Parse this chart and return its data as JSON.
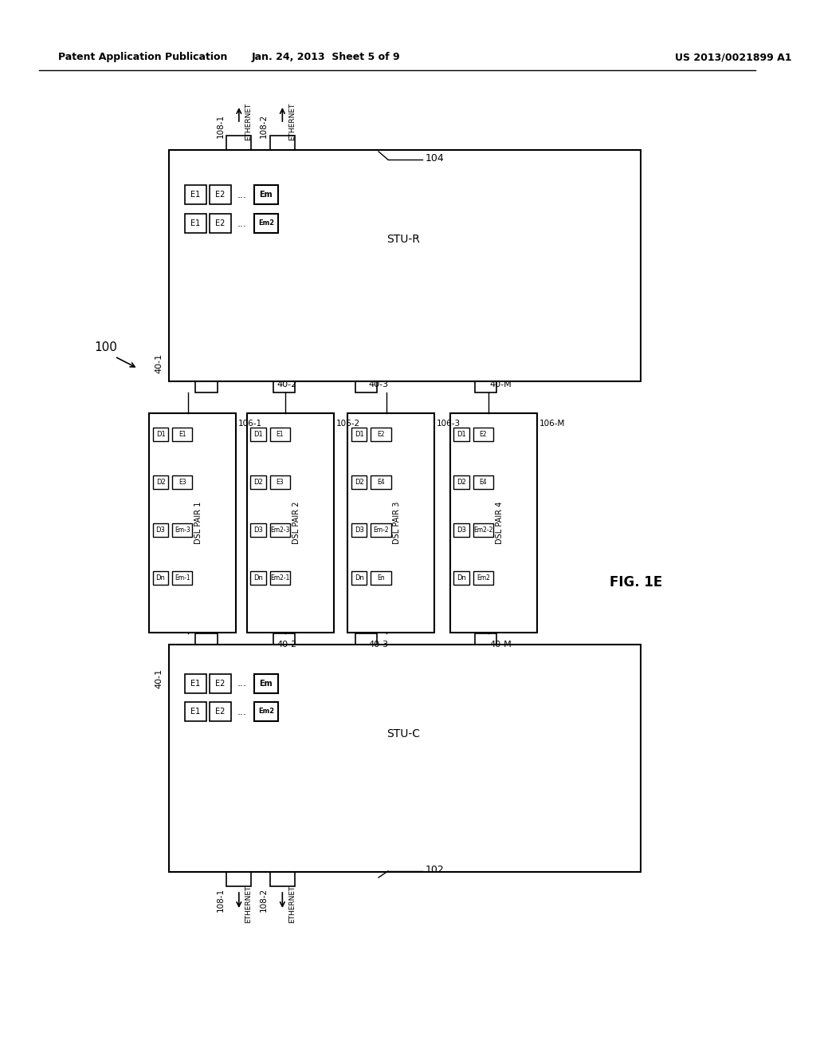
{
  "bg_color": "#ffffff",
  "header_left": "Patent Application Publication",
  "header_mid": "Jan. 24, 2013  Sheet 5 of 9",
  "header_right": "US 2013/0021899 A1",
  "fig_label": "FIG. 1E",
  "system_label": "100",
  "stu_r_label": "STU-R",
  "stu_c_label": "STU-C",
  "ref_104": "104",
  "ref_102": "102",
  "ref_40_1_top": "40-1",
  "ref_40_2_top": "40-2",
  "ref_40_3_top": "40-3",
  "ref_40_M_top": "40-M",
  "ref_40_1_bot": "40-1",
  "ref_40_2_bot": "40-2",
  "ref_40_3_bot": "40-3",
  "ref_40_M_bot": "40-M",
  "eth_labels_top": [
    "108-1",
    "108-2"
  ],
  "eth_labels_bot": [
    "108-1",
    "108-2"
  ],
  "eth_text": "ETHERNET",
  "dsl_pairs": [
    "DSL PAIR 1",
    "DSL PAIR 2",
    "DSL PAIR 3",
    "DSL PAIR 4"
  ],
  "dsl_refs": [
    "106-1",
    "106-2",
    "106-3",
    "106-M"
  ],
  "pair1_data": [
    [
      "D1",
      "E1"
    ],
    [
      "D2",
      "E3"
    ],
    [
      "D3",
      "Em-3"
    ],
    [
      "Dn",
      "Em-1"
    ]
  ],
  "pair2_data": [
    [
      "D1",
      "E1"
    ],
    [
      "D2",
      "E3"
    ],
    [
      "D3",
      "Em2-3"
    ],
    [
      "Dn",
      "Em2-1"
    ]
  ],
  "pair3_data": [
    [
      "D1",
      "E2"
    ],
    [
      "D2",
      "E4"
    ],
    [
      "D3",
      "Em-2"
    ],
    [
      "Dn",
      "En"
    ]
  ],
  "pair4_data": [
    [
      "D1",
      "E2"
    ],
    [
      "D2",
      "E4"
    ],
    [
      "D3",
      "Em2-2"
    ],
    [
      "Dn",
      "Em2"
    ]
  ]
}
